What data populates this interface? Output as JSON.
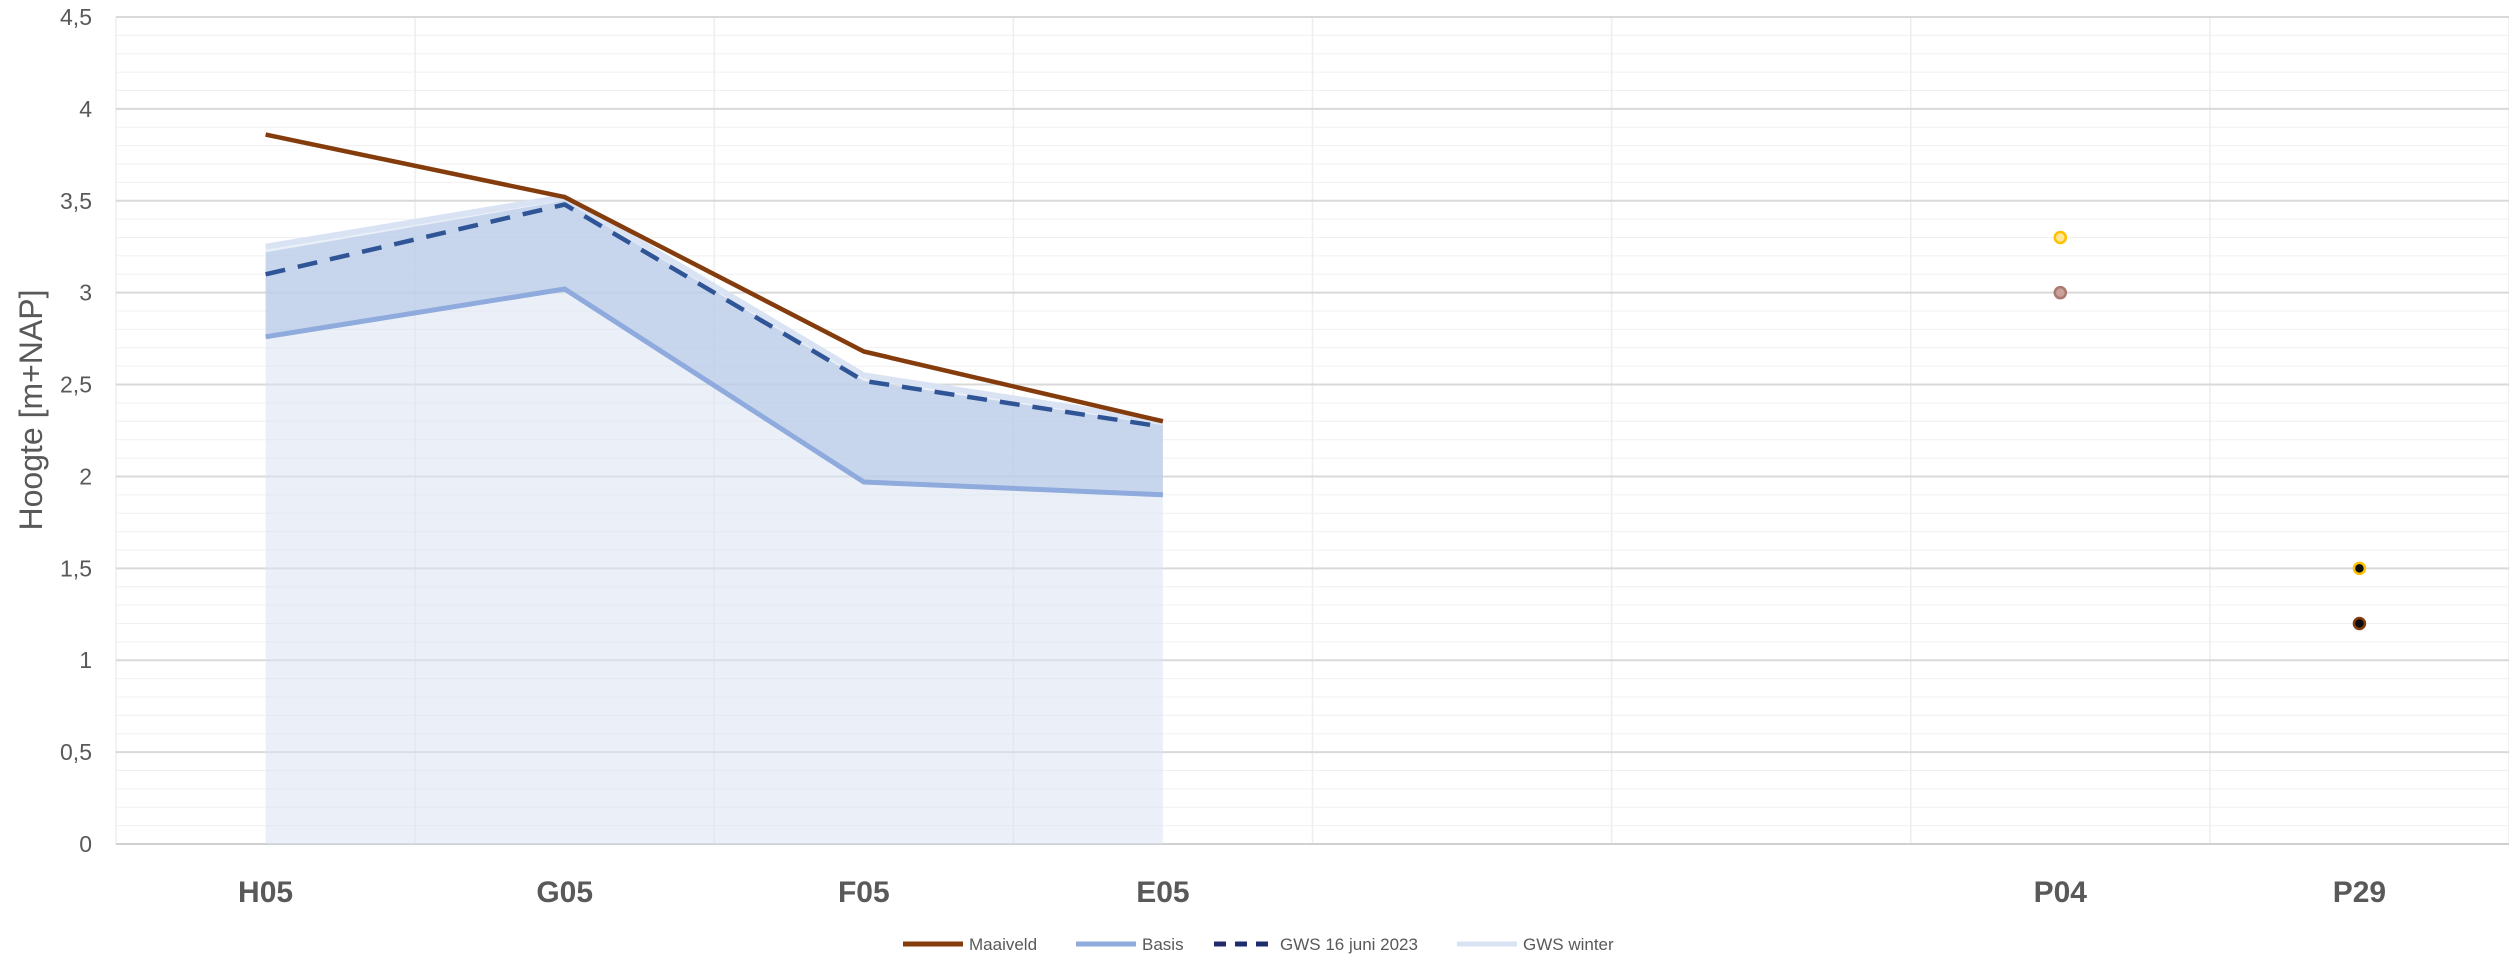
{
  "chart_data": {
    "type": "line",
    "ylabel": "Hoogte [m+NAP]",
    "xlabel": "",
    "ylim": [
      0,
      4.5
    ],
    "y_major_step": 0.5,
    "y_minor_step": 0.1,
    "y_tick_labels": [
      "0",
      "0,5",
      "1",
      "1,5",
      "2",
      "2,5",
      "3",
      "3,5",
      "4",
      "4,5"
    ],
    "categories": [
      "H05",
      "G05",
      "F05",
      "E05",
      "",
      "",
      "P04",
      "P29"
    ],
    "x_tick_labels": [
      "H05",
      "G05",
      "F05",
      "E05",
      "P04",
      "P29"
    ],
    "series": [
      {
        "name": "Maaiveld",
        "style": "line",
        "color": "#843c0c",
        "values": [
          3.86,
          3.52,
          2.68,
          2.3,
          null,
          null,
          null,
          null
        ]
      },
      {
        "name": "Basis",
        "style": "line",
        "color": "#8faadc",
        "values": [
          2.76,
          3.02,
          1.97,
          1.9,
          null,
          null,
          null,
          null
        ]
      },
      {
        "name": "GWS 16 juni 2023",
        "style": "dashed",
        "color": "#2f5597",
        "values": [
          3.1,
          3.48,
          2.52,
          2.27,
          null,
          null,
          null,
          null
        ]
      },
      {
        "name": "GWS winter",
        "style": "area",
        "color": "#dae3f3",
        "values": [
          3.25,
          3.52,
          2.55,
          2.3,
          null,
          null,
          null,
          null
        ]
      }
    ],
    "band": {
      "lower": [
        2.76,
        3.02,
        1.97,
        1.9
      ],
      "upper": [
        3.22,
        3.5,
        2.52,
        2.28
      ],
      "color": "#b4c7e7"
    },
    "points": [
      {
        "category": "P04",
        "value": 3.3,
        "fill": "#ffe699",
        "stroke": "#ffc000"
      },
      {
        "category": "P04",
        "value": 3.0,
        "fill": "#c9a29b",
        "stroke": "#a9796f"
      },
      {
        "category": "P29",
        "value": 1.5,
        "fill": "#0d0d0d",
        "stroke": "#ffc000"
      },
      {
        "category": "P29",
        "value": 1.2,
        "fill": "#0d0d0d",
        "stroke": "#843c0c"
      }
    ],
    "grid": true,
    "legend_position": "bottom"
  }
}
